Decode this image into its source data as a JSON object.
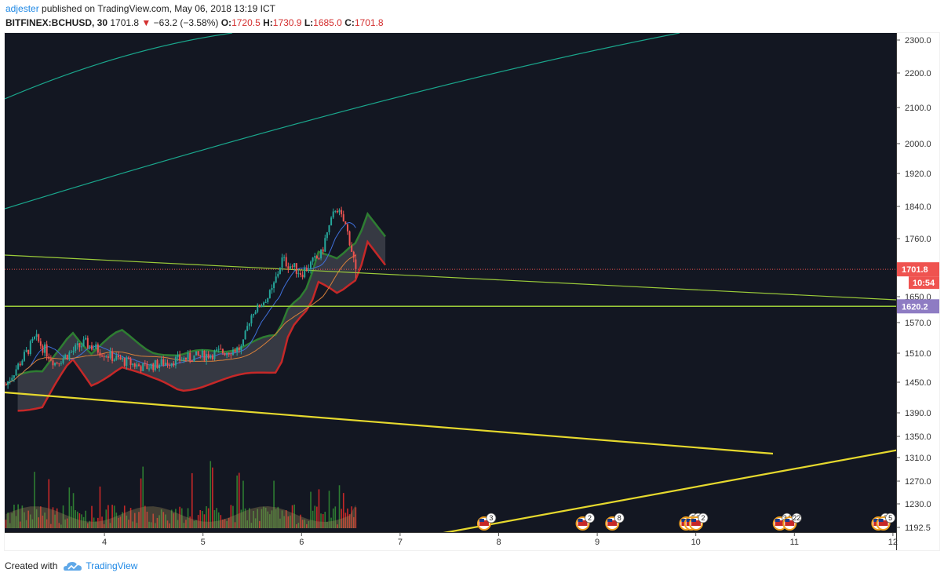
{
  "header": {
    "author": "adjester",
    "published_text": " published on TradingView.com, May 06, 2018 13:19 ICT",
    "symbol": "BITFINEX:BCHUSD, 30",
    "last": "1701.8",
    "change": "−63.2 (−3.58%)",
    "open_label": "O:",
    "open": "1720.5",
    "high_label": "H:",
    "high": "1730.9",
    "low_label": "L:",
    "low": "1685.0",
    "close_label": "C:",
    "close": "1701.8"
  },
  "footer": {
    "created_with": "Created with",
    "brand": "TradingView"
  },
  "chart_data": {
    "type": "candlestick",
    "symbol": "BITFINEX:BCHUSD",
    "timeframe": "30",
    "x_ticks": [
      "4",
      "5",
      "6",
      "7",
      "8",
      "9",
      "10",
      "11",
      "12"
    ],
    "y_ticks": [
      2300,
      2200,
      2100,
      2000,
      1920,
      1840,
      1760,
      1650,
      1570,
      1510,
      1450,
      1390,
      1350,
      1310,
      1270,
      1230,
      1192.5
    ],
    "price_labels": {
      "last": "1701.8",
      "countdown": "10:54",
      "horizontal_level": "1620.2"
    },
    "ohlc_key_points": [
      {
        "x": 3.0,
        "close": 1445
      },
      {
        "x": 3.3,
        "close": 1540
      },
      {
        "x": 3.5,
        "close": 1490
      },
      {
        "x": 3.8,
        "close": 1530
      },
      {
        "x": 4.1,
        "close": 1500
      },
      {
        "x": 4.4,
        "close": 1480
      },
      {
        "x": 4.7,
        "close": 1495
      },
      {
        "x": 5.0,
        "close": 1505
      },
      {
        "x": 5.4,
        "close": 1520
      },
      {
        "x": 5.5,
        "close": 1600
      },
      {
        "x": 5.7,
        "close": 1660
      },
      {
        "x": 5.8,
        "close": 1720
      },
      {
        "x": 6.0,
        "close": 1695
      },
      {
        "x": 6.2,
        "close": 1730
      },
      {
        "x": 6.35,
        "close": 1840
      },
      {
        "x": 6.45,
        "close": 1790
      },
      {
        "x": 6.55,
        "close": 1701.8
      }
    ],
    "event_markers": [
      {
        "x": 7.9,
        "count": "3"
      },
      {
        "x": 8.9,
        "count": "2"
      },
      {
        "x": 9.2,
        "count": "8"
      },
      {
        "x": 9.95,
        "count": "5"
      },
      {
        "x": 10.0,
        "count": "3"
      },
      {
        "x": 10.05,
        "count": "2"
      },
      {
        "x": 10.9,
        "count": "34"
      },
      {
        "x": 11.0,
        "count": "22"
      },
      {
        "x": 11.9,
        "count": "2"
      },
      {
        "x": 11.95,
        "count": "5"
      }
    ],
    "colors": {
      "background": "#131722",
      "up": "#26a69a",
      "down": "#ef5350",
      "volume_up": "#2e7d32",
      "volume_down": "#c62828",
      "trend_yellow": "#e6d92e",
      "trend_olive": "#9ccc3a",
      "arc_teal": "#1aa68c",
      "ma_blue": "#3f6fd9",
      "ma_orange": "#d9803a",
      "cloud_green": "#2e7d32",
      "cloud_red": "#c62828",
      "last_price": "#ef5350",
      "level_label": "#8e7cc3"
    },
    "grid": false
  }
}
